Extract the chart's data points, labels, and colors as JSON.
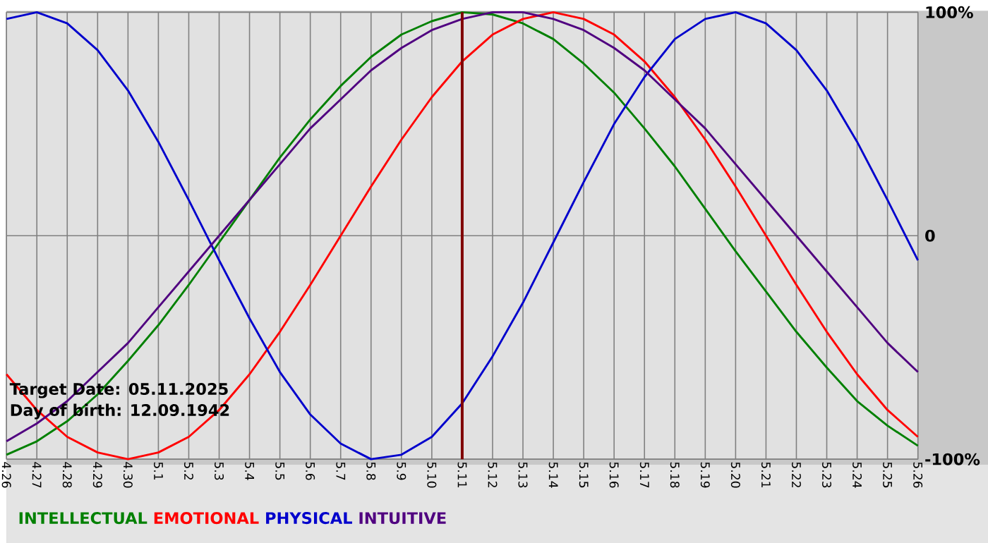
{
  "chart_data": {
    "type": "line",
    "categories": [
      "4.26",
      "4.27",
      "4.28",
      "4.29",
      "4.30",
      "5.1",
      "5.2",
      "5.3",
      "5.4",
      "5.5",
      "5.6",
      "5.7",
      "5.8",
      "5.9",
      "5.10",
      "5.11",
      "5.12",
      "5.13",
      "5.14",
      "5.15",
      "5.16",
      "5.17",
      "5.18",
      "5.19",
      "5.20",
      "5.21",
      "5.22",
      "5.23",
      "5.24",
      "5.25",
      "5.26"
    ],
    "series": [
      {
        "name": "INTELLECTUAL",
        "color": "#008000",
        "values": [
          -98,
          -92,
          -83,
          -71,
          -56,
          -40,
          -22,
          -3,
          16,
          35,
          52,
          67,
          80,
          90,
          96,
          100,
          99,
          95,
          88,
          77,
          64,
          48,
          31,
          12,
          -7,
          -25,
          -43,
          -59,
          -74,
          -85,
          -94
        ]
      },
      {
        "name": "EMOTIONAL",
        "color": "#ff0000",
        "values": [
          -62,
          -78,
          -90,
          -97,
          -100,
          -97,
          -90,
          -78,
          -62,
          -43,
          -22,
          0,
          22,
          43,
          62,
          78,
          90,
          97,
          100,
          97,
          90,
          78,
          62,
          43,
          22,
          0,
          -22,
          -43,
          -62,
          -78,
          -90
        ]
      },
      {
        "name": "PHYSICAL",
        "color": "#0000cc",
        "values": [
          97,
          100,
          95,
          83,
          65,
          42,
          16,
          -11,
          -37,
          -61,
          -80,
          -93,
          -100,
          -98,
          -90,
          -75,
          -54,
          -30,
          -3,
          24,
          50,
          71,
          88,
          97,
          100,
          95,
          83,
          65,
          42,
          16,
          -11
        ]
      },
      {
        "name": "INTUITIVE",
        "color": "#500080",
        "values": [
          -92,
          -84,
          -74,
          -61,
          -48,
          -32,
          -16,
          0,
          16,
          32,
          48,
          61,
          74,
          84,
          92,
          97,
          100,
          100,
          97,
          92,
          84,
          74,
          61,
          48,
          32,
          16,
          0,
          -16,
          -32,
          -48,
          -61
        ]
      }
    ],
    "ylim": [
      -100,
      100
    ],
    "yticks": [
      {
        "value": 100,
        "label": "100%"
      },
      0,
      {
        "value": -100,
        "label": "-100%"
      }
    ],
    "grid": true,
    "legend": "bottom left",
    "ref_lines": [
      {
        "axis": "x",
        "value": "5.11",
        "color": "#800000"
      }
    ],
    "annotations": [
      "Target Date: 05.11.2025",
      "Day of birth: 12.09.1942"
    ]
  }
}
